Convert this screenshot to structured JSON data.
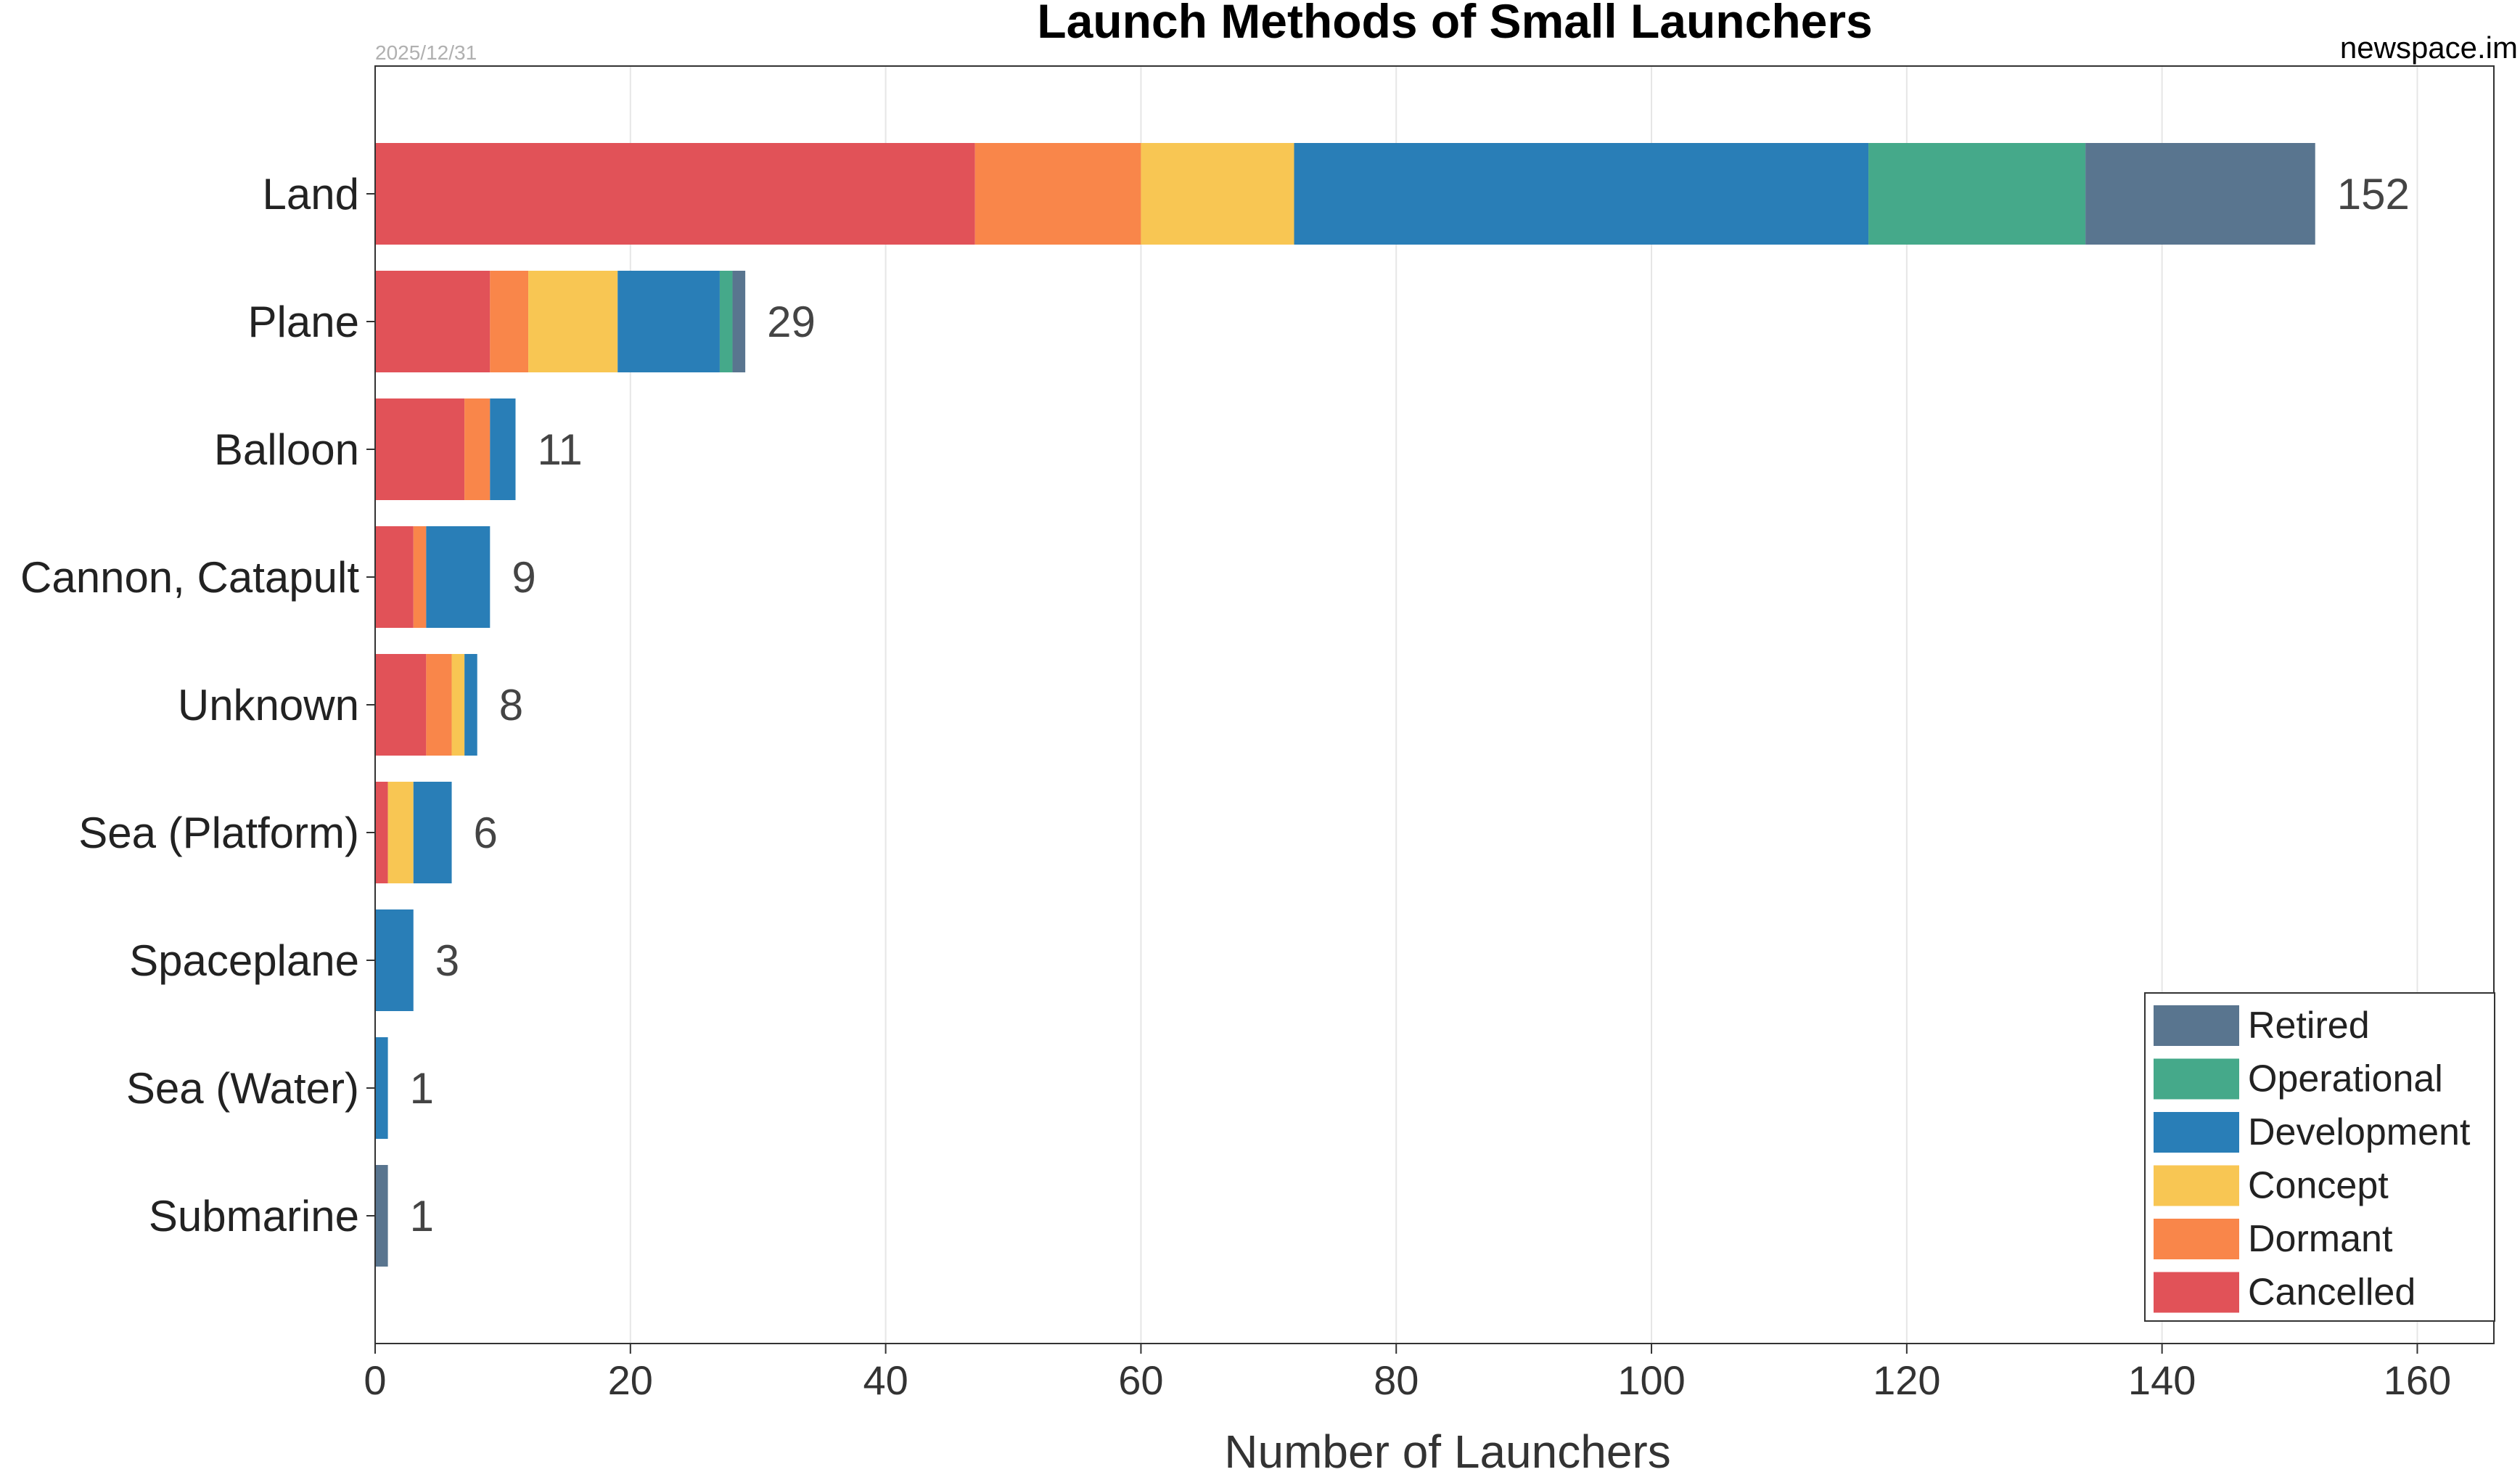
{
  "header": {
    "date": "2025/12/31",
    "source": "newspace.im"
  },
  "chart_data": {
    "type": "bar",
    "orientation": "horizontal",
    "stacked": true,
    "title": "Launch Methods of Small Launchers",
    "xlabel": "Number of Launchers",
    "ylabel": "",
    "xlim": [
      0,
      166
    ],
    "xticks": [
      0,
      20,
      40,
      60,
      80,
      100,
      120,
      140,
      160
    ],
    "grid": "vertical",
    "legend_position": "bottom-right",
    "categories": [
      "Land",
      "Plane",
      "Balloon",
      "Cannon, Catapult",
      "Unknown",
      "Sea (Platform)",
      "Spaceplane",
      "Sea (Water)",
      "Submarine"
    ],
    "totals": [
      152,
      29,
      11,
      9,
      8,
      6,
      3,
      1,
      1
    ],
    "series": [
      {
        "name": "Cancelled",
        "color": "#e15258",
        "values": [
          47,
          9,
          7,
          3,
          4,
          1,
          0,
          0,
          0
        ]
      },
      {
        "name": "Dormant",
        "color": "#f9864a",
        "values": [
          13,
          3,
          2,
          1,
          2,
          0,
          0,
          0,
          0
        ]
      },
      {
        "name": "Concept",
        "color": "#f8c653",
        "values": [
          12,
          7,
          0,
          0,
          1,
          2,
          0,
          0,
          0
        ]
      },
      {
        "name": "Development",
        "color": "#297eb7",
        "values": [
          45,
          8,
          2,
          5,
          1,
          3,
          3,
          1,
          0
        ]
      },
      {
        "name": "Operational",
        "color": "#45a98a",
        "values": [
          17,
          1,
          0,
          0,
          0,
          0,
          0,
          0,
          0
        ]
      },
      {
        "name": "Retired",
        "color": "#59758f",
        "values": [
          18,
          1,
          0,
          0,
          0,
          0,
          0,
          0,
          1
        ]
      }
    ],
    "legend_order": [
      "Retired",
      "Operational",
      "Development",
      "Concept",
      "Dormant",
      "Cancelled"
    ]
  }
}
